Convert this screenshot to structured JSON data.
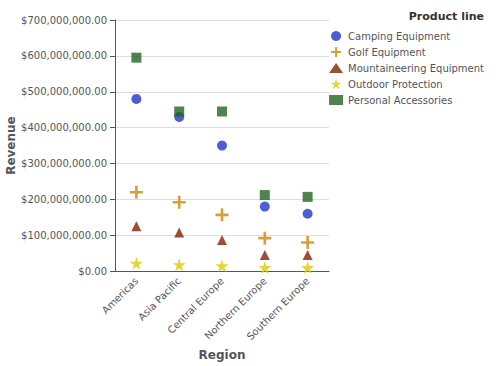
{
  "chart_data": {
    "type": "scatter",
    "title": "",
    "xlabel": "Region",
    "ylabel": "Revenue",
    "legend_title": "Product line",
    "categories": [
      "Americas",
      "Asia Pacific",
      "Central Europe",
      "Northern Europe",
      "Southern Europe"
    ],
    "series": [
      {
        "name": "Camping Equipment",
        "color": "#2233cc",
        "marker": "circle",
        "values": [
          480000000,
          430000000,
          350000000,
          180000000,
          160000000
        ]
      },
      {
        "name": "Golf Equipment",
        "color": "#cc8800",
        "marker": "plus",
        "values": [
          220000000,
          192000000,
          157000000,
          92000000,
          80000000
        ]
      },
      {
        "name": "Mountaineering Equipment",
        "color": "#882200",
        "marker": "triangle",
        "values": [
          125000000,
          108000000,
          87000000,
          45000000,
          45000000
        ]
      },
      {
        "name": "Outdoor Protection",
        "color": "#ddcc00",
        "marker": "star",
        "values": [
          22000000,
          18000000,
          15000000,
          10000000,
          10000000
        ]
      },
      {
        "name": "Personal Accessories",
        "color": "#226622",
        "marker": "square",
        "values": [
          595000000,
          445000000,
          445000000,
          212000000,
          207000000
        ]
      }
    ],
    "ylim": [
      0,
      700000000
    ],
    "yticks": [
      {
        "value": 0,
        "label": "$0.00"
      },
      {
        "value": 100000000,
        "label": "$100,000,000.00"
      },
      {
        "value": 200000000,
        "label": "$200,000,000.00"
      },
      {
        "value": 300000000,
        "label": "$300,000,000.00"
      },
      {
        "value": 400000000,
        "label": "$400,000,000.00"
      },
      {
        "value": 500000000,
        "label": "$500,000,000.00"
      },
      {
        "value": 600000000,
        "label": "$600,000,000.00"
      },
      {
        "value": 700000000,
        "label": "$700,000,000.00"
      }
    ],
    "grid": true,
    "legend": "upper right"
  }
}
